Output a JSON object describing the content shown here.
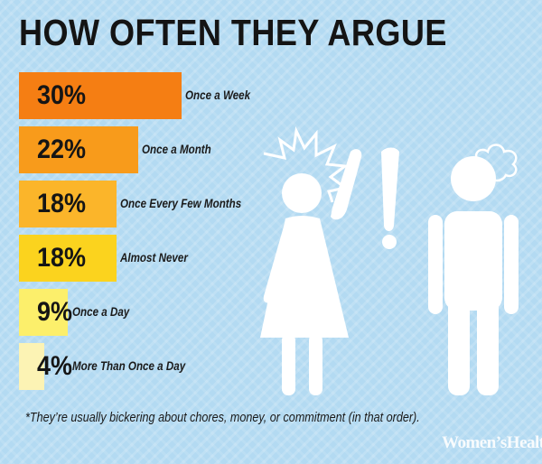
{
  "chart_data": {
    "type": "bar",
    "orientation": "horizontal",
    "title": "HOW OFTEN THEY ARGUE",
    "categories": [
      "Once a Week",
      "Once a Month",
      "Once Every Few Months",
      "Almost Never",
      "Once a Day",
      "More Than Once a Day"
    ],
    "values": [
      30,
      22,
      18,
      18,
      9,
      4
    ],
    "value_labels": [
      "30%",
      "22%",
      "18%",
      "18%",
      "9%",
      "4%"
    ],
    "colors": [
      "#f57e13",
      "#f89b1b",
      "#fbb52a",
      "#fbd31e",
      "#fcef6b",
      "#fcf3b4"
    ],
    "footnote": "*They’re usually bickering about chores, money, or commitment (in that order).",
    "grid": false,
    "legend": "none"
  },
  "brand": "Women’sHealth"
}
